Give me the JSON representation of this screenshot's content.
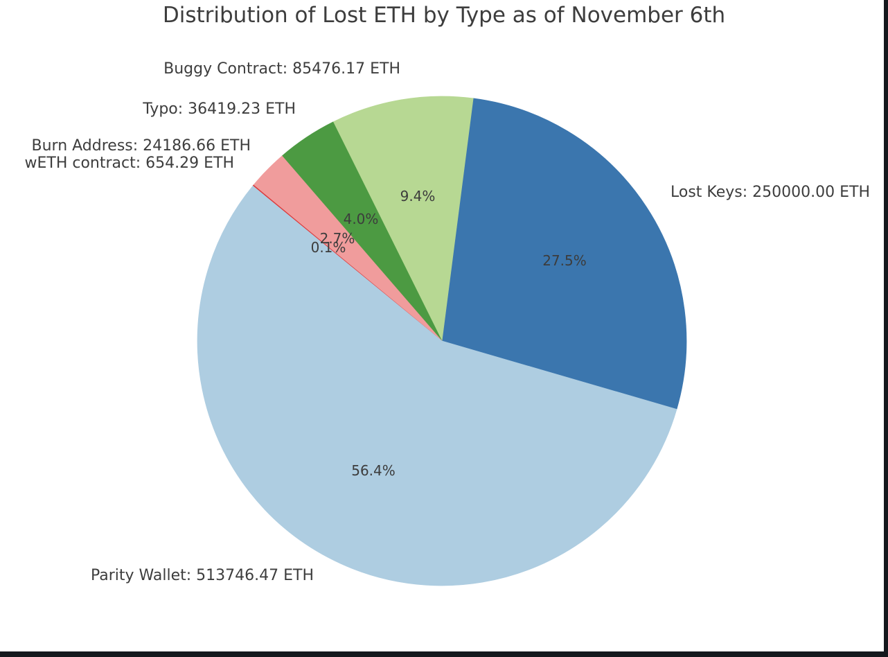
{
  "page": {
    "background_color": "#ffffff",
    "frame_color": "#14181d",
    "text_color": "#3d3d3d"
  },
  "chart_data": {
    "type": "pie",
    "title": "Distribution of Lost ETH by Type as of November 6th",
    "unit": "ETH",
    "direction": "counterclockwise",
    "start_angle_deg": -16.2,
    "pct_distance": 0.6,
    "legend": "none",
    "slices": [
      {
        "label": "Lost Keys",
        "value": 250000.0,
        "display": "Lost Keys: 250000.00 ETH",
        "pct_label": "27.5%",
        "color": "#3B76AE"
      },
      {
        "label": "Buggy Contract",
        "value": 85476.17,
        "display": "Buggy Contract: 85476.17 ETH",
        "pct_label": "9.4%",
        "color": "#B7D893"
      },
      {
        "label": "Typo",
        "value": 36419.23,
        "display": "Typo: 36419.23 ETH",
        "pct_label": "4.0%",
        "color": "#4C9A42"
      },
      {
        "label": "Burn Address",
        "value": 24186.66,
        "display": "Burn Address: 24186.66 ETH",
        "pct_label": "2.7%",
        "color": "#F09C9C"
      },
      {
        "label": "wETH contract",
        "value": 654.29,
        "display": "wETH contract: 654.29 ETH",
        "pct_label": "0.1%",
        "color": "#DC3A3C"
      },
      {
        "label": "Parity Wallet",
        "value": 513746.47,
        "display": "Parity Wallet: 513746.47 ETH",
        "pct_label": "56.4%",
        "color": "#AECDE1"
      }
    ]
  }
}
